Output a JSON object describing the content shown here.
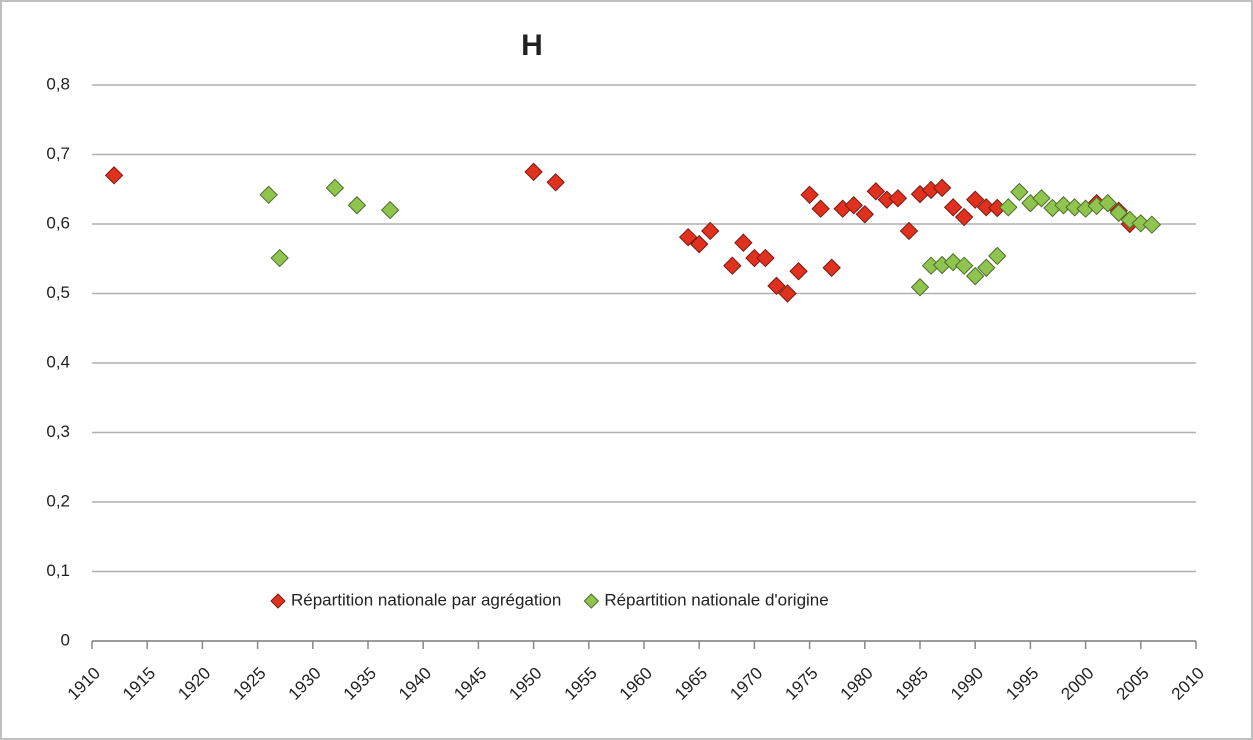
{
  "chart_data": {
    "type": "scatter",
    "title": "H",
    "xlim": [
      1910,
      2010
    ],
    "xticks": [
      1910,
      1915,
      1920,
      1925,
      1930,
      1935,
      1940,
      1945,
      1950,
      1955,
      1960,
      1965,
      1970,
      1975,
      1980,
      1985,
      1990,
      1995,
      2000,
      2005,
      2010
    ],
    "ylim": [
      0,
      0.8
    ],
    "yticks": [
      0,
      {
        "value": 0.1,
        "label": "0,1"
      },
      {
        "value": 0.2,
        "label": "0,2"
      },
      {
        "value": 0.3,
        "label": "0,3"
      },
      {
        "value": 0.4,
        "label": "0,4"
      },
      {
        "value": 0.5,
        "label": "0,5"
      },
      {
        "value": 0.6,
        "label": "0,6"
      },
      {
        "value": 0.7,
        "label": "0,7"
      },
      {
        "value": 0.8,
        "label": "0,8"
      }
    ],
    "grid": true,
    "legend": "bottom",
    "series": [
      {
        "name": "Répartition nationale par agrégation",
        "color": "#e0301e",
        "x": [
          1912,
          1950,
          1952,
          1964,
          1965,
          1966,
          1968,
          1969,
          1970,
          1971,
          1972,
          1973,
          1974,
          1975,
          1976,
          1977,
          1978,
          1979,
          1980,
          1981,
          1982,
          1983,
          1984,
          1985,
          1986,
          1987,
          1988,
          1989,
          1990,
          1991,
          1992,
          2001,
          2003,
          2004
        ],
        "values": [
          0.67,
          0.675,
          0.66,
          0.581,
          0.571,
          0.59,
          0.54,
          0.573,
          0.551,
          0.551,
          0.511,
          0.5,
          0.532,
          0.642,
          0.622,
          0.537,
          0.622,
          0.627,
          0.614,
          0.647,
          0.635,
          0.637,
          0.59,
          0.643,
          0.649,
          0.652,
          0.624,
          0.61,
          0.635,
          0.624,
          0.623,
          0.63,
          0.619,
          0.6
        ]
      },
      {
        "name": "Répartition nationale d'origine",
        "color": "#8fc54f",
        "x": [
          1926,
          1927,
          1932,
          1934,
          1937,
          1985,
          1986,
          1987,
          1988,
          1989,
          1990,
          1991,
          1992,
          1993,
          1994,
          1995,
          1996,
          1997,
          1998,
          1999,
          2000,
          2001,
          2002,
          2003,
          2004,
          2005,
          2006
        ],
        "values": [
          0.642,
          0.551,
          0.652,
          0.627,
          0.62,
          0.509,
          0.54,
          0.541,
          0.545,
          0.54,
          0.525,
          0.537,
          0.554,
          0.624,
          0.646,
          0.63,
          0.637,
          0.623,
          0.627,
          0.624,
          0.622,
          0.626,
          0.63,
          0.616,
          0.606,
          0.601,
          0.599
        ]
      }
    ]
  }
}
